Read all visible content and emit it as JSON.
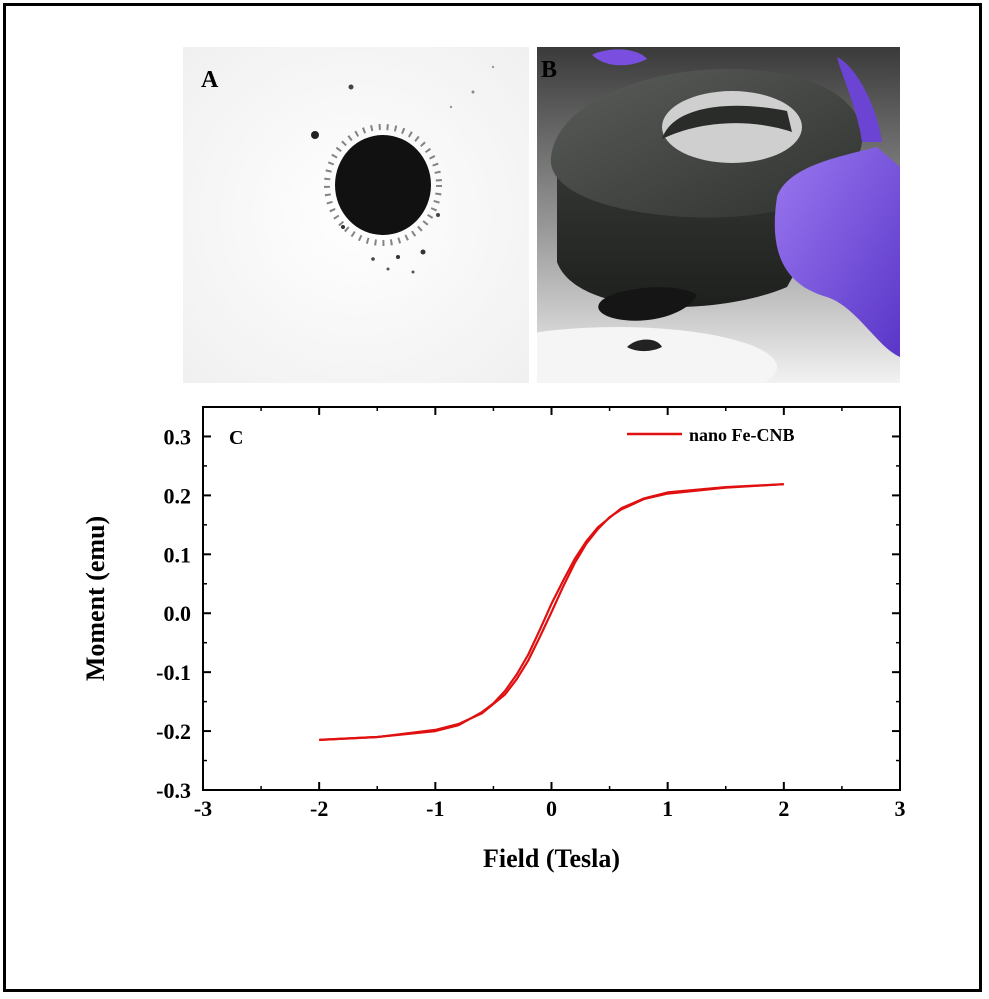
{
  "panels": {
    "a": {
      "label": "A"
    },
    "b": {
      "label": "B"
    }
  },
  "colors": {
    "series": "#e01010",
    "glove": "#7a4fe0",
    "magnet": "#3c3f3c",
    "powder": "#111111"
  },
  "chart_data": {
    "type": "line",
    "panel_label": "C",
    "title": "",
    "xlabel": "Field (Tesla)",
    "ylabel": "Moment (emu)",
    "xlim": [
      -3,
      3
    ],
    "ylim": [
      -0.3,
      0.35
    ],
    "xticks": [
      -3,
      -2,
      -1,
      0,
      1,
      2,
      3
    ],
    "xtick_labels": [
      "-3",
      "-2",
      "-1",
      "0",
      "1",
      "2",
      "3"
    ],
    "yticks": [
      -0.3,
      -0.2,
      -0.1,
      0.0,
      0.1,
      0.2,
      0.3
    ],
    "ytick_labels": [
      "-0.3",
      "-0.2",
      "-0.1",
      "0.0",
      "0.1",
      "0.2",
      "0.3"
    ],
    "grid": false,
    "legend": {
      "position": "top-right",
      "entries": [
        "nano Fe-CNB"
      ]
    },
    "series": [
      {
        "name": "nano Fe-CNB",
        "branch_up": {
          "x": [
            -2.0,
            -1.5,
            -1.0,
            -0.8,
            -0.6,
            -0.4,
            -0.3,
            -0.2,
            -0.1,
            0.0,
            0.1,
            0.2,
            0.3,
            0.4,
            0.5,
            0.6,
            0.8,
            1.0,
            1.5,
            2.0
          ],
          "y": [
            -0.215,
            -0.21,
            -0.198,
            -0.188,
            -0.17,
            -0.138,
            -0.112,
            -0.08,
            -0.04,
            0.002,
            0.045,
            0.085,
            0.118,
            0.143,
            0.163,
            0.176,
            0.194,
            0.203,
            0.213,
            0.219
          ]
        },
        "branch_down": {
          "x": [
            2.0,
            1.5,
            1.0,
            0.8,
            0.6,
            0.4,
            0.3,
            0.2,
            0.1,
            0.0,
            -0.1,
            -0.2,
            -0.3,
            -0.4,
            -0.5,
            -0.6,
            -0.8,
            -1.0,
            -1.5,
            -2.0
          ],
          "y": [
            0.219,
            0.214,
            0.205,
            0.195,
            0.178,
            0.146,
            0.122,
            0.092,
            0.055,
            0.016,
            -0.028,
            -0.07,
            -0.104,
            -0.132,
            -0.153,
            -0.168,
            -0.19,
            -0.2,
            -0.21,
            -0.215
          ]
        }
      }
    ]
  }
}
